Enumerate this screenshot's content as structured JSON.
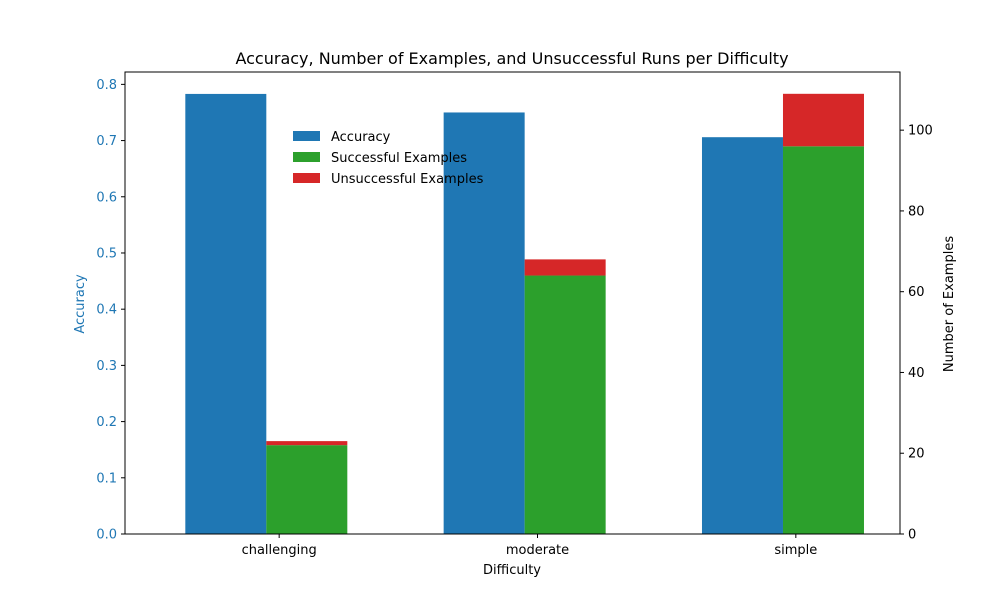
{
  "colors": {
    "accuracy": "#1f77b4",
    "successful": "#2ca02c",
    "unsuccessful": "#d62728",
    "left_axis": "#1f77b4",
    "right_axis": "#000000"
  },
  "chart_data": {
    "type": "bar",
    "title": "Accuracy, Number of Examples, and Unsuccessful Runs per Difficulty",
    "xlabel": "Difficulty",
    "ylabel_left": "Accuracy",
    "ylabel_right": "Number of Examples",
    "categories": [
      "challenging",
      "moderate",
      "simple"
    ],
    "ylim_left": [
      0,
      0.822
    ],
    "ylim_right": [
      0,
      114.4
    ],
    "yticks_left": [
      "0.0",
      "0.1",
      "0.2",
      "0.3",
      "0.4",
      "0.5",
      "0.6",
      "0.7",
      "0.8"
    ],
    "yticks_right": [
      "0",
      "20",
      "40",
      "60",
      "80",
      "100"
    ],
    "grid": false,
    "legend_position": "upper-left inside",
    "series": [
      {
        "name": "Accuracy",
        "axis": "left",
        "values": [
          0.783,
          0.75,
          0.706
        ]
      },
      {
        "name": "Successful Examples",
        "axis": "right",
        "values": [
          22,
          64,
          96
        ]
      },
      {
        "name": "Unsuccessful Examples",
        "axis": "right",
        "values": [
          1,
          4,
          13
        ]
      }
    ]
  }
}
